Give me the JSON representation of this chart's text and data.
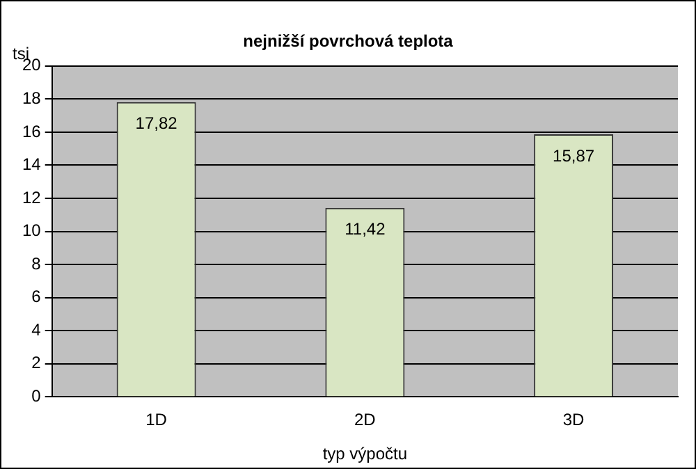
{
  "chart_data": {
    "type": "bar",
    "title": "nejnižší povrchová teplota",
    "xlabel": "typ výpočtu",
    "ylabel": "tsi",
    "categories": [
      "1D",
      "2D",
      "3D"
    ],
    "values": [
      17.82,
      11.42,
      15.87
    ],
    "value_labels": [
      "17,82",
      "11,42",
      "15,87"
    ],
    "color": "#d9e6c3",
    "ylim": [
      0,
      20
    ],
    "yticks": [
      0,
      2,
      4,
      6,
      8,
      10,
      12,
      14,
      16,
      18,
      20
    ],
    "grid": "y",
    "legend": false
  }
}
